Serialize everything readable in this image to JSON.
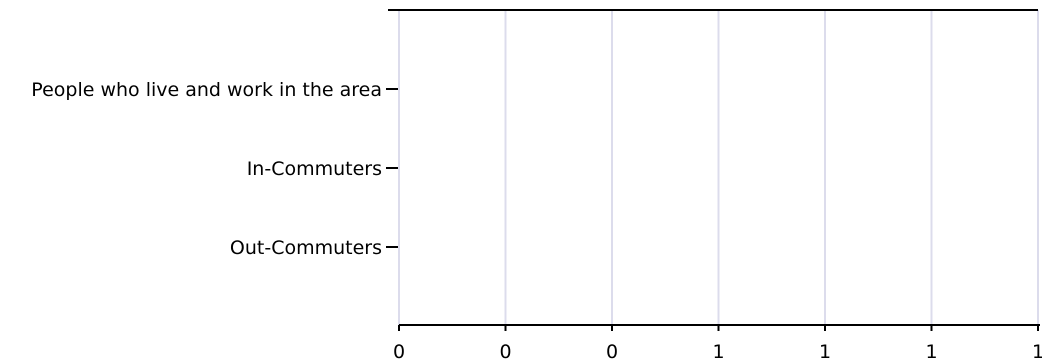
{
  "chart_data": {
    "type": "bar",
    "orientation": "horizontal",
    "categories": [
      "People who live and work in the area",
      "In-Commuters",
      "Out-Commuters"
    ],
    "x_tick_labels": [
      "0",
      "0",
      "0",
      "1",
      "1",
      "1",
      "1"
    ],
    "values": [
      0,
      0,
      0
    ],
    "xlim": [
      0,
      1
    ],
    "grid": true,
    "legend": "none"
  },
  "colors": {
    "axis": "#000000",
    "grid": "#dcdcec",
    "text": "#000000",
    "background": "#ffffff"
  }
}
